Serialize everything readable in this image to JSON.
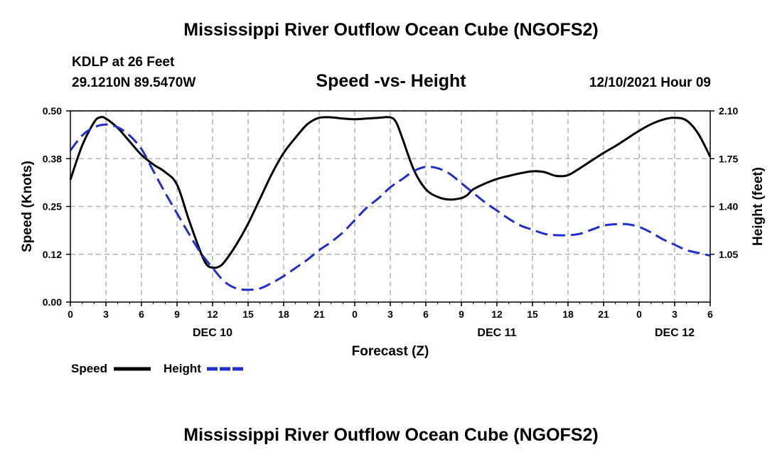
{
  "header": {
    "title": "Mississippi River Outflow Ocean Cube (NGOFS2)",
    "station": "KDLP at 26 Feet",
    "coords": "29.1210N  89.5470W",
    "subtitle": "Speed -vs- Height",
    "datetime": "12/10/2021 Hour 09",
    "bottom_title": "Mississippi River Outflow Ocean Cube (NGOFS2)"
  },
  "legend": {
    "speed": "Speed",
    "height": "Height"
  },
  "colors": {
    "speed": "#000000",
    "height": "#1f2ecc",
    "grid": "#b4b4b4"
  },
  "chart_data": {
    "type": "line",
    "title": "Speed -vs- Height",
    "xlabel": "Forecast (Z)",
    "ylabel": "Speed (Knots)",
    "y2label": "Height (feet)",
    "xlim": [
      0,
      54
    ],
    "ylim": [
      0.0,
      0.5
    ],
    "y2lim": [
      0.7,
      2.1
    ],
    "x_ticks": [
      0,
      3,
      6,
      9,
      12,
      15,
      18,
      21,
      24,
      27,
      30,
      33,
      36,
      39,
      42,
      45,
      48,
      51,
      54
    ],
    "x_tick_labels": [
      "0",
      "3",
      "6",
      "9",
      "12",
      "15",
      "18",
      "21",
      "0",
      "3",
      "6",
      "9",
      "12",
      "15",
      "18",
      "21",
      "0",
      "3",
      "6"
    ],
    "day_labels": [
      {
        "x": 12,
        "label": "DEC 10"
      },
      {
        "x": 36,
        "label": "DEC 11"
      },
      {
        "x": 51,
        "label": "DEC 12"
      }
    ],
    "y_ticks": [
      0.0,
      0.125,
      0.25,
      0.375,
      0.5
    ],
    "y_tick_labels": [
      "0.00",
      "0.12",
      "0.25",
      "0.38",
      "0.50"
    ],
    "y2_ticks": [
      1.05,
      1.4,
      1.75,
      2.1
    ],
    "y2_tick_labels": [
      "1.05",
      "1.40",
      "1.75",
      "2.10"
    ],
    "grid": true,
    "series": [
      {
        "name": "Speed",
        "axis": "left",
        "x": [
          0,
          1,
          2,
          2.5,
          3,
          4,
          5,
          6,
          7,
          8,
          9,
          10,
          11,
          11.5,
          12,
          12.5,
          13,
          14,
          15,
          16,
          17,
          18,
          19,
          20,
          21,
          22,
          23,
          24,
          25,
          26,
          27,
          27.5,
          28,
          29,
          30,
          31,
          32,
          33,
          33.5,
          34,
          35,
          36,
          37,
          38,
          39,
          40,
          41,
          42,
          43,
          44,
          45,
          46,
          47,
          48,
          49,
          50,
          51,
          52,
          53,
          54
        ],
        "y": [
          0.32,
          0.41,
          0.47,
          0.483,
          0.48,
          0.455,
          0.42,
          0.385,
          0.36,
          0.34,
          0.307,
          0.215,
          0.13,
          0.098,
          0.09,
          0.092,
          0.105,
          0.15,
          0.205,
          0.27,
          0.335,
          0.39,
          0.43,
          0.465,
          0.482,
          0.483,
          0.48,
          0.478,
          0.48,
          0.482,
          0.483,
          0.47,
          0.43,
          0.345,
          0.295,
          0.275,
          0.268,
          0.272,
          0.28,
          0.295,
          0.31,
          0.322,
          0.33,
          0.337,
          0.342,
          0.34,
          0.33,
          0.332,
          0.35,
          0.37,
          0.39,
          0.408,
          0.428,
          0.448,
          0.465,
          0.477,
          0.482,
          0.475,
          0.44,
          0.38
        ]
      },
      {
        "name": "Height",
        "axis": "right",
        "x": [
          0,
          1,
          2,
          3,
          4,
          5,
          6,
          7,
          8,
          9,
          10,
          11,
          12,
          13,
          14,
          15,
          16,
          17,
          18,
          19,
          20,
          21,
          22,
          23,
          24,
          25,
          26,
          27,
          28,
          29,
          30,
          31,
          32,
          33,
          34,
          35,
          36,
          37,
          38,
          39,
          40,
          41,
          42,
          43,
          44,
          45,
          46,
          47,
          48,
          49,
          50,
          51,
          52,
          53,
          54
        ],
        "y": [
          1.81,
          1.92,
          1.98,
          2.0,
          1.98,
          1.92,
          1.82,
          1.66,
          1.5,
          1.35,
          1.2,
          1.06,
          0.95,
          0.85,
          0.8,
          0.79,
          0.8,
          0.84,
          0.89,
          0.95,
          1.01,
          1.08,
          1.14,
          1.21,
          1.3,
          1.39,
          1.46,
          1.54,
          1.6,
          1.66,
          1.69,
          1.68,
          1.64,
          1.57,
          1.5,
          1.43,
          1.37,
          1.31,
          1.26,
          1.23,
          1.2,
          1.19,
          1.19,
          1.2,
          1.23,
          1.26,
          1.27,
          1.27,
          1.25,
          1.21,
          1.16,
          1.12,
          1.08,
          1.06,
          1.04
        ]
      }
    ]
  }
}
